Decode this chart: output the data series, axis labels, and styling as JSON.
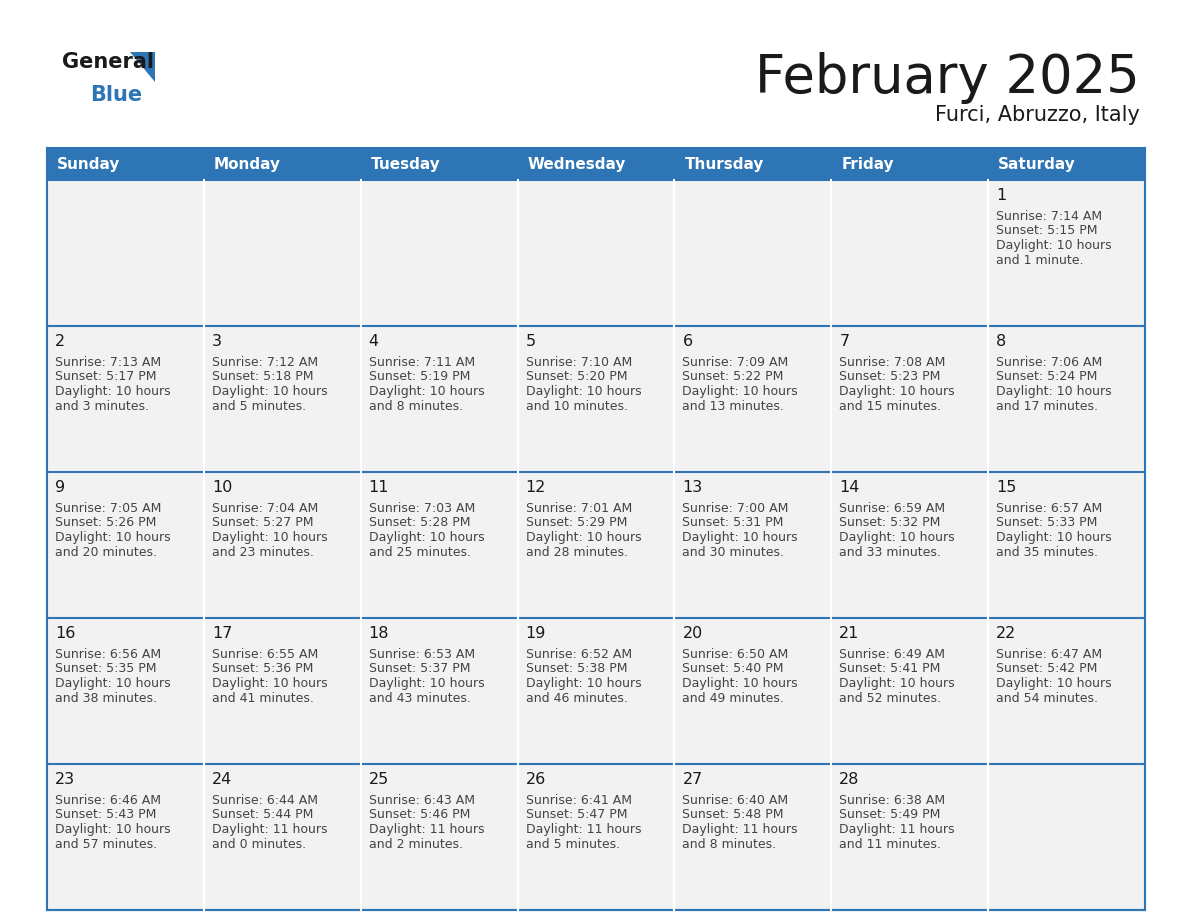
{
  "title": "February 2025",
  "subtitle": "Furci, Abruzzo, Italy",
  "header_bg": "#2e75b6",
  "header_text_color": "#ffffff",
  "cell_bg": "#f2f2f2",
  "day_number_color": "#1a1a1a",
  "text_color": "#444444",
  "line_color": "#2e75b6",
  "days_of_week": [
    "Sunday",
    "Monday",
    "Tuesday",
    "Wednesday",
    "Thursday",
    "Friday",
    "Saturday"
  ],
  "calendar_data": [
    [
      null,
      null,
      null,
      null,
      null,
      null,
      {
        "day": "1",
        "sunrise": "7:14 AM",
        "sunset": "5:15 PM",
        "daylight_line1": "Daylight: 10 hours",
        "daylight_line2": "and 1 minute."
      }
    ],
    [
      {
        "day": "2",
        "sunrise": "7:13 AM",
        "sunset": "5:17 PM",
        "daylight_line1": "Daylight: 10 hours",
        "daylight_line2": "and 3 minutes."
      },
      {
        "day": "3",
        "sunrise": "7:12 AM",
        "sunset": "5:18 PM",
        "daylight_line1": "Daylight: 10 hours",
        "daylight_line2": "and 5 minutes."
      },
      {
        "day": "4",
        "sunrise": "7:11 AM",
        "sunset": "5:19 PM",
        "daylight_line1": "Daylight: 10 hours",
        "daylight_line2": "and 8 minutes."
      },
      {
        "day": "5",
        "sunrise": "7:10 AM",
        "sunset": "5:20 PM",
        "daylight_line1": "Daylight: 10 hours",
        "daylight_line2": "and 10 minutes."
      },
      {
        "day": "6",
        "sunrise": "7:09 AM",
        "sunset": "5:22 PM",
        "daylight_line1": "Daylight: 10 hours",
        "daylight_line2": "and 13 minutes."
      },
      {
        "day": "7",
        "sunrise": "7:08 AM",
        "sunset": "5:23 PM",
        "daylight_line1": "Daylight: 10 hours",
        "daylight_line2": "and 15 minutes."
      },
      {
        "day": "8",
        "sunrise": "7:06 AM",
        "sunset": "5:24 PM",
        "daylight_line1": "Daylight: 10 hours",
        "daylight_line2": "and 17 minutes."
      }
    ],
    [
      {
        "day": "9",
        "sunrise": "7:05 AM",
        "sunset": "5:26 PM",
        "daylight_line1": "Daylight: 10 hours",
        "daylight_line2": "and 20 minutes."
      },
      {
        "day": "10",
        "sunrise": "7:04 AM",
        "sunset": "5:27 PM",
        "daylight_line1": "Daylight: 10 hours",
        "daylight_line2": "and 23 minutes."
      },
      {
        "day": "11",
        "sunrise": "7:03 AM",
        "sunset": "5:28 PM",
        "daylight_line1": "Daylight: 10 hours",
        "daylight_line2": "and 25 minutes."
      },
      {
        "day": "12",
        "sunrise": "7:01 AM",
        "sunset": "5:29 PM",
        "daylight_line1": "Daylight: 10 hours",
        "daylight_line2": "and 28 minutes."
      },
      {
        "day": "13",
        "sunrise": "7:00 AM",
        "sunset": "5:31 PM",
        "daylight_line1": "Daylight: 10 hours",
        "daylight_line2": "and 30 minutes."
      },
      {
        "day": "14",
        "sunrise": "6:59 AM",
        "sunset": "5:32 PM",
        "daylight_line1": "Daylight: 10 hours",
        "daylight_line2": "and 33 minutes."
      },
      {
        "day": "15",
        "sunrise": "6:57 AM",
        "sunset": "5:33 PM",
        "daylight_line1": "Daylight: 10 hours",
        "daylight_line2": "and 35 minutes."
      }
    ],
    [
      {
        "day": "16",
        "sunrise": "6:56 AM",
        "sunset": "5:35 PM",
        "daylight_line1": "Daylight: 10 hours",
        "daylight_line2": "and 38 minutes."
      },
      {
        "day": "17",
        "sunrise": "6:55 AM",
        "sunset": "5:36 PM",
        "daylight_line1": "Daylight: 10 hours",
        "daylight_line2": "and 41 minutes."
      },
      {
        "day": "18",
        "sunrise": "6:53 AM",
        "sunset": "5:37 PM",
        "daylight_line1": "Daylight: 10 hours",
        "daylight_line2": "and 43 minutes."
      },
      {
        "day": "19",
        "sunrise": "6:52 AM",
        "sunset": "5:38 PM",
        "daylight_line1": "Daylight: 10 hours",
        "daylight_line2": "and 46 minutes."
      },
      {
        "day": "20",
        "sunrise": "6:50 AM",
        "sunset": "5:40 PM",
        "daylight_line1": "Daylight: 10 hours",
        "daylight_line2": "and 49 minutes."
      },
      {
        "day": "21",
        "sunrise": "6:49 AM",
        "sunset": "5:41 PM",
        "daylight_line1": "Daylight: 10 hours",
        "daylight_line2": "and 52 minutes."
      },
      {
        "day": "22",
        "sunrise": "6:47 AM",
        "sunset": "5:42 PM",
        "daylight_line1": "Daylight: 10 hours",
        "daylight_line2": "and 54 minutes."
      }
    ],
    [
      {
        "day": "23",
        "sunrise": "6:46 AM",
        "sunset": "5:43 PM",
        "daylight_line1": "Daylight: 10 hours",
        "daylight_line2": "and 57 minutes."
      },
      {
        "day": "24",
        "sunrise": "6:44 AM",
        "sunset": "5:44 PM",
        "daylight_line1": "Daylight: 11 hours",
        "daylight_line2": "and 0 minutes."
      },
      {
        "day": "25",
        "sunrise": "6:43 AM",
        "sunset": "5:46 PM",
        "daylight_line1": "Daylight: 11 hours",
        "daylight_line2": "and 2 minutes."
      },
      {
        "day": "26",
        "sunrise": "6:41 AM",
        "sunset": "5:47 PM",
        "daylight_line1": "Daylight: 11 hours",
        "daylight_line2": "and 5 minutes."
      },
      {
        "day": "27",
        "sunrise": "6:40 AM",
        "sunset": "5:48 PM",
        "daylight_line1": "Daylight: 11 hours",
        "daylight_line2": "and 8 minutes."
      },
      {
        "day": "28",
        "sunrise": "6:38 AM",
        "sunset": "5:49 PM",
        "daylight_line1": "Daylight: 11 hours",
        "daylight_line2": "and 11 minutes."
      },
      null
    ]
  ]
}
